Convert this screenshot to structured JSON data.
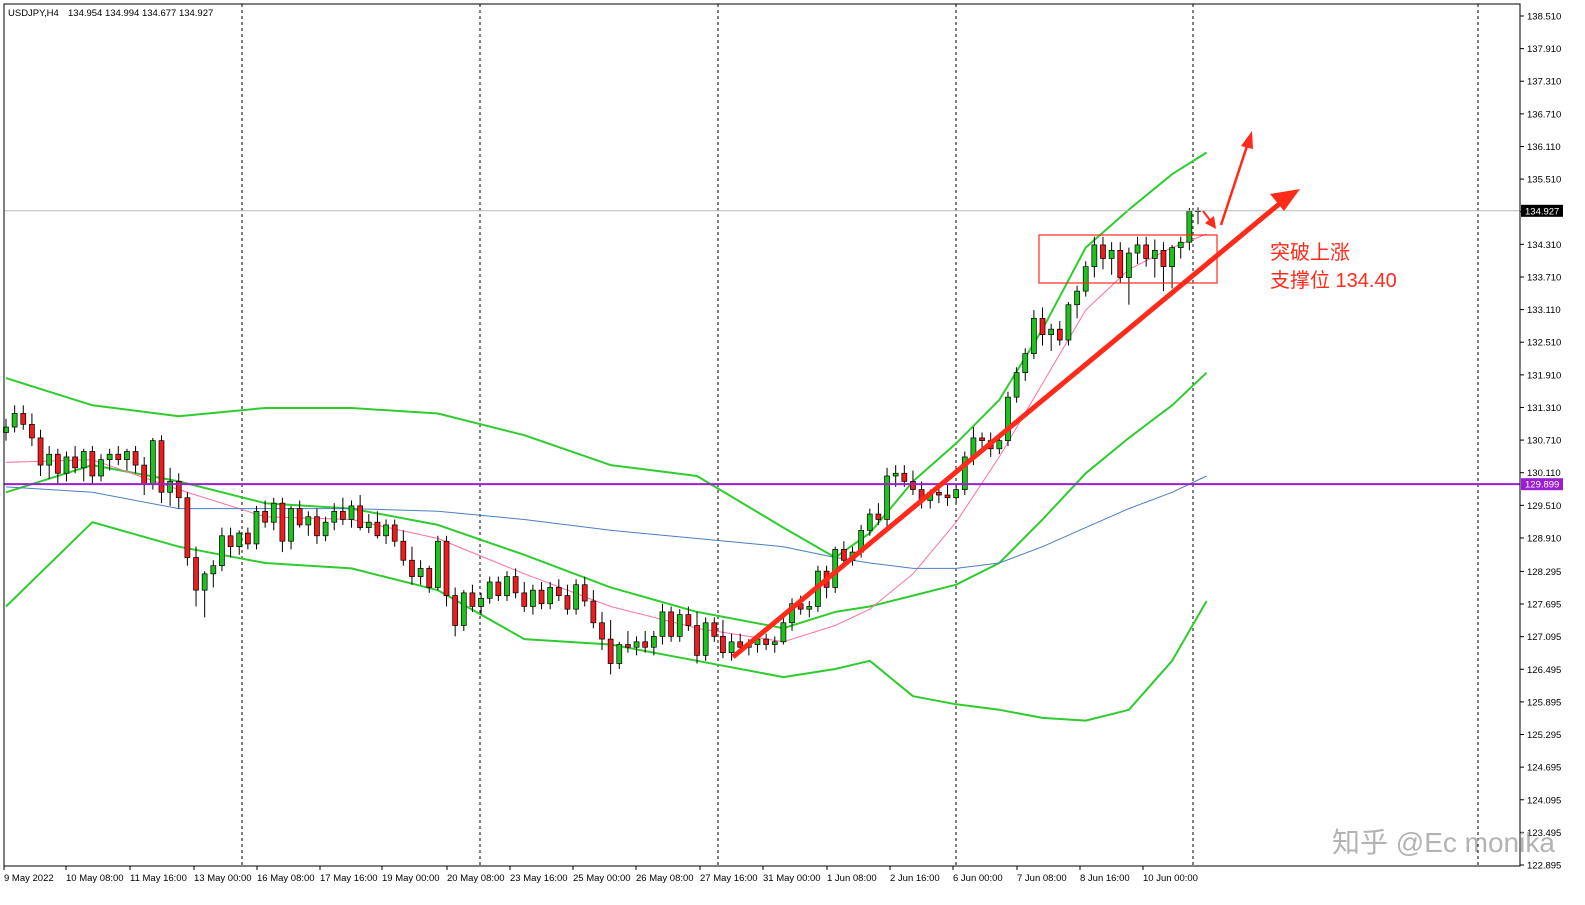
{
  "chart_data": {
    "type": "candlestick",
    "symbol_header": "USDJPY",
    "symbol_header_suffix": ",H4",
    "ohlc_header": "134.954 134.994 134.677 134.927",
    "y_range": [
      122.895,
      138.51
    ],
    "y_ticks": [
      "138.510",
      "137.910",
      "137.310",
      "136.710",
      "136.110",
      "135.510",
      "134.910",
      "134.310",
      "133.710",
      "133.110",
      "132.510",
      "131.910",
      "131.310",
      "130.710",
      "130.110",
      "129.510",
      "128.910",
      "128.295",
      "127.695",
      "127.095",
      "126.495",
      "125.895",
      "125.295",
      "124.695",
      "124.095",
      "123.495",
      "122.895"
    ],
    "x_labels": [
      "9 May 2022",
      "10 May 08:00",
      "11 May 16:00",
      "13 May 00:00",
      "16 May 08:00",
      "17 May 16:00",
      "19 May 00:00",
      "20 May 08:00",
      "23 May 16:00",
      "25 May 00:00",
      "26 May 08:00",
      "27 May 16:00",
      "31 May 00:00",
      "1 Jun 08:00",
      "2 Jun 16:00",
      "6 Jun 00:00",
      "7 Jun 08:00",
      "8 Jun 16:00",
      "10 Jun 00:00"
    ],
    "bar_count": 139,
    "last_price": 134.927,
    "last_price_label": "134.927",
    "support_line_price": 129.899,
    "support_line_label": "129.899",
    "candles": [
      [
        130.85,
        131.1,
        130.7,
        130.95
      ],
      [
        130.95,
        131.35,
        130.85,
        131.2
      ],
      [
        131.2,
        131.35,
        130.9,
        131.0
      ],
      [
        131.0,
        131.2,
        130.6,
        130.75
      ],
      [
        130.75,
        130.9,
        130.05,
        130.25
      ],
      [
        130.25,
        130.6,
        130.0,
        130.45
      ],
      [
        130.45,
        130.55,
        129.9,
        130.1
      ],
      [
        130.1,
        130.5,
        129.95,
        130.4
      ],
      [
        130.4,
        130.6,
        130.1,
        130.2
      ],
      [
        130.2,
        130.55,
        129.95,
        130.5
      ],
      [
        130.5,
        130.6,
        129.9,
        130.05
      ],
      [
        130.05,
        130.45,
        129.95,
        130.35
      ],
      [
        130.35,
        130.55,
        130.15,
        130.45
      ],
      [
        130.45,
        130.6,
        130.25,
        130.35
      ],
      [
        130.35,
        130.55,
        130.15,
        130.5
      ],
      [
        130.5,
        130.6,
        130.1,
        130.25
      ],
      [
        130.25,
        130.4,
        129.7,
        129.9
      ],
      [
        129.9,
        130.75,
        129.8,
        130.7
      ],
      [
        130.7,
        130.8,
        129.55,
        129.75
      ],
      [
        129.75,
        130.2,
        129.5,
        129.95
      ],
      [
        129.95,
        130.1,
        129.45,
        129.65
      ],
      [
        129.65,
        129.75,
        128.4,
        128.55
      ],
      [
        128.55,
        128.75,
        127.65,
        127.95
      ],
      [
        127.95,
        128.3,
        127.45,
        128.25
      ],
      [
        128.25,
        128.5,
        128.0,
        128.4
      ],
      [
        128.4,
        129.1,
        128.3,
        128.95
      ],
      [
        128.95,
        129.1,
        128.55,
        128.75
      ],
      [
        128.75,
        129.05,
        128.6,
        129.0
      ],
      [
        129.0,
        129.1,
        128.7,
        128.8
      ],
      [
        128.8,
        129.5,
        128.7,
        129.4
      ],
      [
        129.4,
        129.6,
        129.1,
        129.2
      ],
      [
        129.2,
        129.65,
        129.05,
        129.55
      ],
      [
        129.55,
        129.65,
        128.65,
        128.85
      ],
      [
        128.85,
        129.5,
        128.7,
        129.45
      ],
      [
        129.45,
        129.6,
        129.1,
        129.15
      ],
      [
        129.15,
        129.4,
        128.95,
        129.3
      ],
      [
        129.3,
        129.45,
        128.8,
        128.95
      ],
      [
        128.95,
        129.3,
        128.85,
        129.2
      ],
      [
        129.2,
        129.55,
        129.05,
        129.4
      ],
      [
        129.4,
        129.65,
        129.15,
        129.25
      ],
      [
        129.25,
        129.6,
        129.1,
        129.5
      ],
      [
        129.5,
        129.7,
        129.05,
        129.1
      ],
      [
        129.1,
        129.35,
        129.0,
        129.2
      ],
      [
        129.2,
        129.4,
        128.9,
        128.95
      ],
      [
        128.95,
        129.25,
        128.8,
        129.15
      ],
      [
        129.15,
        129.25,
        128.75,
        128.85
      ],
      [
        128.85,
        129.05,
        128.4,
        128.5
      ],
      [
        128.5,
        128.75,
        128.05,
        128.2
      ],
      [
        128.2,
        128.5,
        128.05,
        128.35
      ],
      [
        128.35,
        128.4,
        127.9,
        128.0
      ],
      [
        128.0,
        128.95,
        127.95,
        128.85
      ],
      [
        128.85,
        128.95,
        127.65,
        127.85
      ],
      [
        127.85,
        128.0,
        127.1,
        127.3
      ],
      [
        127.3,
        127.95,
        127.2,
        127.9
      ],
      [
        127.9,
        128.05,
        127.55,
        127.65
      ],
      [
        127.65,
        127.9,
        127.5,
        127.8
      ],
      [
        127.8,
        128.2,
        127.7,
        128.1
      ],
      [
        128.1,
        128.2,
        127.75,
        127.85
      ],
      [
        127.85,
        128.3,
        127.75,
        128.2
      ],
      [
        128.2,
        128.35,
        127.8,
        127.9
      ],
      [
        127.9,
        128.1,
        127.55,
        127.65
      ],
      [
        127.65,
        128.05,
        127.5,
        127.95
      ],
      [
        127.95,
        128.1,
        127.6,
        127.7
      ],
      [
        127.7,
        128.1,
        127.6,
        128.0
      ],
      [
        128.0,
        128.15,
        127.75,
        127.85
      ],
      [
        127.85,
        128.05,
        127.5,
        127.6
      ],
      [
        127.6,
        128.15,
        127.5,
        128.05
      ],
      [
        128.05,
        128.2,
        127.65,
        127.75
      ],
      [
        127.75,
        127.95,
        127.25,
        127.35
      ],
      [
        127.35,
        127.55,
        126.85,
        127.05
      ],
      [
        127.05,
        127.4,
        126.4,
        126.6
      ],
      [
        126.6,
        127.0,
        126.5,
        126.95
      ],
      [
        126.95,
        127.2,
        126.8,
        126.9
      ],
      [
        126.9,
        127.1,
        126.75,
        127.0
      ],
      [
        127.0,
        127.2,
        126.8,
        126.9
      ],
      [
        126.9,
        127.2,
        126.75,
        127.1
      ],
      [
        127.1,
        127.7,
        126.95,
        127.55
      ],
      [
        127.55,
        127.65,
        127.0,
        127.1
      ],
      [
        127.1,
        127.6,
        127.0,
        127.5
      ],
      [
        127.5,
        127.65,
        127.2,
        127.3
      ],
      [
        127.3,
        127.55,
        126.6,
        126.75
      ],
      [
        126.75,
        127.45,
        126.65,
        127.35
      ],
      [
        127.35,
        127.45,
        127.0,
        127.1
      ],
      [
        127.1,
        127.4,
        126.7,
        126.8
      ],
      [
        126.8,
        127.15,
        126.65,
        127.0
      ],
      [
        127.0,
        127.15,
        126.8,
        126.9
      ],
      [
        126.9,
        127.05,
        126.75,
        126.95
      ],
      [
        126.95,
        127.15,
        126.8,
        127.05
      ],
      [
        127.05,
        127.15,
        126.85,
        126.95
      ],
      [
        126.95,
        127.1,
        126.8,
        127.0
      ],
      [
        127.0,
        127.45,
        126.95,
        127.35
      ],
      [
        127.35,
        127.8,
        127.2,
        127.7
      ],
      [
        127.7,
        127.85,
        127.5,
        127.6
      ],
      [
        127.6,
        127.75,
        127.45,
        127.65
      ],
      [
        127.65,
        128.4,
        127.55,
        128.3
      ],
      [
        128.3,
        128.4,
        127.8,
        128.0
      ],
      [
        128.0,
        128.75,
        127.9,
        128.7
      ],
      [
        128.7,
        128.85,
        128.35,
        128.5
      ],
      [
        128.5,
        128.75,
        128.4,
        128.65
      ],
      [
        128.65,
        129.15,
        128.55,
        129.05
      ],
      [
        129.05,
        129.45,
        128.95,
        129.35
      ],
      [
        129.35,
        129.55,
        129.15,
        129.25
      ],
      [
        129.25,
        130.2,
        129.1,
        130.05
      ],
      [
        130.05,
        130.25,
        129.85,
        130.1
      ],
      [
        130.1,
        130.25,
        129.85,
        129.95
      ],
      [
        129.95,
        130.15,
        129.7,
        129.8
      ],
      [
        129.8,
        129.95,
        129.45,
        129.6
      ],
      [
        129.6,
        129.8,
        129.45,
        129.75
      ],
      [
        129.75,
        129.9,
        129.55,
        129.7
      ],
      [
        129.7,
        129.9,
        129.5,
        129.65
      ],
      [
        129.65,
        129.9,
        129.55,
        129.8
      ],
      [
        129.8,
        130.5,
        129.7,
        130.4
      ],
      [
        130.4,
        130.95,
        130.25,
        130.75
      ],
      [
        130.75,
        130.85,
        130.55,
        130.7
      ],
      [
        130.7,
        130.85,
        130.4,
        130.55
      ],
      [
        130.55,
        130.75,
        130.45,
        130.7
      ],
      [
        130.7,
        131.6,
        130.6,
        131.5
      ],
      [
        131.5,
        132.05,
        131.4,
        131.95
      ],
      [
        131.95,
        132.4,
        131.8,
        132.3
      ],
      [
        132.3,
        133.1,
        132.2,
        132.95
      ],
      [
        132.95,
        133.15,
        132.45,
        132.65
      ],
      [
        132.65,
        132.85,
        132.35,
        132.75
      ],
      [
        132.75,
        132.9,
        132.45,
        132.55
      ],
      [
        132.55,
        133.25,
        132.45,
        133.2
      ],
      [
        133.2,
        133.55,
        132.95,
        133.45
      ],
      [
        133.45,
        134.0,
        133.35,
        133.9
      ],
      [
        133.9,
        134.45,
        133.7,
        134.3
      ],
      [
        134.3,
        134.45,
        133.85,
        134.05
      ],
      [
        134.05,
        134.35,
        133.75,
        134.2
      ],
      [
        134.2,
        134.35,
        133.6,
        133.7
      ],
      [
        133.7,
        134.25,
        133.2,
        134.15
      ],
      [
        134.15,
        134.45,
        133.95,
        134.3
      ],
      [
        134.3,
        134.45,
        133.9,
        134.05
      ],
      [
        134.05,
        134.4,
        133.7,
        134.2
      ],
      [
        134.2,
        134.35,
        133.45,
        133.9
      ],
      [
        133.9,
        134.3,
        133.5,
        134.25
      ],
      [
        134.25,
        134.45,
        134.05,
        134.35
      ],
      [
        134.35,
        134.98,
        134.2,
        134.92
      ],
      [
        134.92,
        134.99,
        134.68,
        134.93
      ]
    ],
    "indicators": [
      {
        "name": "bollinger-upper",
        "color": "#2ecc2e",
        "x_bar": [
          0,
          10,
          20,
          30,
          40,
          50,
          60,
          70,
          80,
          90,
          96,
          100,
          105,
          110,
          115,
          120,
          125,
          130,
          135,
          139
        ],
        "y": [
          131.85,
          131.35,
          131.15,
          131.3,
          131.3,
          131.2,
          130.8,
          130.25,
          130.05,
          129.1,
          128.55,
          129.0,
          129.95,
          130.65,
          131.45,
          132.75,
          134.25,
          134.95,
          135.6,
          136.0
        ]
      },
      {
        "name": "bollinger-middle",
        "color": "#2ecc2e",
        "x_bar": [
          0,
          10,
          20,
          30,
          40,
          50,
          60,
          70,
          80,
          90,
          96,
          100,
          105,
          110,
          115,
          120,
          125,
          130,
          135,
          139
        ],
        "y": [
          129.75,
          130.25,
          129.95,
          129.55,
          129.45,
          129.15,
          128.6,
          128.0,
          127.55,
          127.25,
          127.55,
          127.65,
          127.85,
          128.05,
          128.45,
          129.25,
          130.1,
          130.75,
          131.35,
          131.95
        ]
      },
      {
        "name": "bollinger-lower",
        "color": "#2ecc2e",
        "x_bar": [
          0,
          10,
          20,
          30,
          40,
          50,
          60,
          70,
          80,
          90,
          96,
          100,
          105,
          110,
          115,
          120,
          125,
          130,
          135,
          139
        ],
        "y": [
          127.65,
          129.2,
          128.75,
          128.45,
          128.35,
          127.95,
          127.05,
          126.95,
          126.65,
          126.35,
          126.5,
          126.65,
          126.0,
          125.85,
          125.75,
          125.6,
          125.55,
          125.75,
          126.65,
          127.75
        ]
      },
      {
        "name": "ma-pink",
        "color": "#ff6fa8",
        "x_bar": [
          0,
          10,
          20,
          30,
          40,
          50,
          60,
          70,
          80,
          90,
          96,
          100,
          105,
          110,
          115,
          120,
          125,
          130,
          135,
          139
        ],
        "y": [
          130.3,
          130.35,
          129.8,
          129.3,
          129.25,
          128.9,
          128.25,
          127.65,
          127.25,
          127.0,
          127.3,
          127.6,
          128.25,
          129.2,
          130.4,
          131.75,
          133.1,
          133.85,
          134.25,
          134.5
        ]
      },
      {
        "name": "ma-blue",
        "color": "#4a7fc1",
        "x_bar": [
          0,
          10,
          20,
          30,
          40,
          50,
          60,
          70,
          80,
          90,
          96,
          100,
          105,
          110,
          115,
          120,
          125,
          130,
          135,
          139
        ],
        "y": [
          129.85,
          129.75,
          129.45,
          129.45,
          129.45,
          129.4,
          129.25,
          129.05,
          128.9,
          128.75,
          128.55,
          128.45,
          128.35,
          128.35,
          128.45,
          128.75,
          129.1,
          129.45,
          129.75,
          130.05
        ]
      }
    ],
    "annotation": {
      "label_line1": "突破上涨",
      "label_line2": "支撑位 134.40",
      "color": "#ff2a1a"
    },
    "watermark": "知乎 @Ec monika"
  }
}
